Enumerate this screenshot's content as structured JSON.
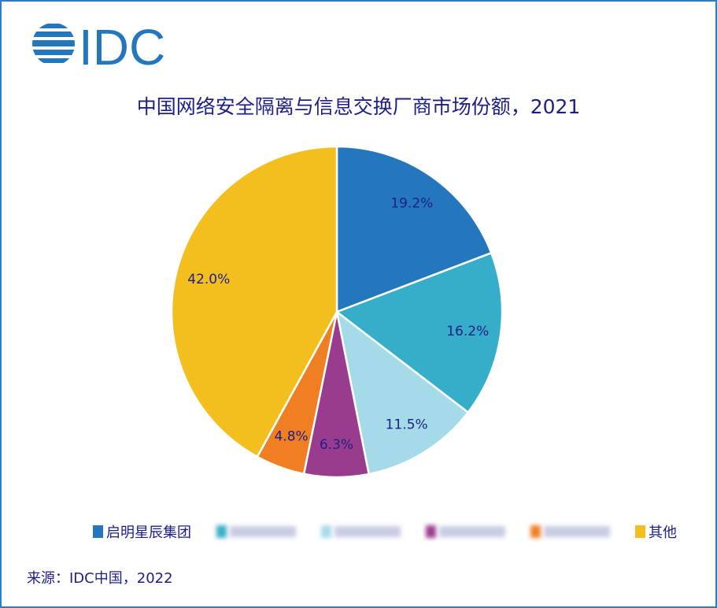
{
  "logo_text": "IDC",
  "source": "来源：IDC中国，2022",
  "colors": {
    "frame": "#2f7dc1",
    "text": "#1c1f86"
  },
  "chart_data": {
    "type": "pie",
    "title": "中国网络安全隔离与信息交换厂商市场份额，2021",
    "start": "top",
    "direction": "clockwise",
    "legend_position": "bottom",
    "slices": [
      {
        "name": "启明星辰集团",
        "value": 19.2,
        "label": "19.2%",
        "color": "#2477bc"
      },
      {
        "name": "",
        "value": 16.2,
        "label": "16.2%",
        "color": "#37aec9",
        "blurred": true
      },
      {
        "name": "",
        "value": 11.5,
        "label": "11.5%",
        "color": "#a5dbe8",
        "blurred": true
      },
      {
        "name": "",
        "value": 6.3,
        "label": "6.3%",
        "color": "#9a3c8e",
        "blurred": true
      },
      {
        "name": "",
        "value": 4.8,
        "label": "4.8%",
        "color": "#f07e22",
        "blurred": true
      },
      {
        "name": "其他",
        "value": 42.0,
        "label": "42.0%",
        "color": "#f2bf1f"
      }
    ]
  }
}
